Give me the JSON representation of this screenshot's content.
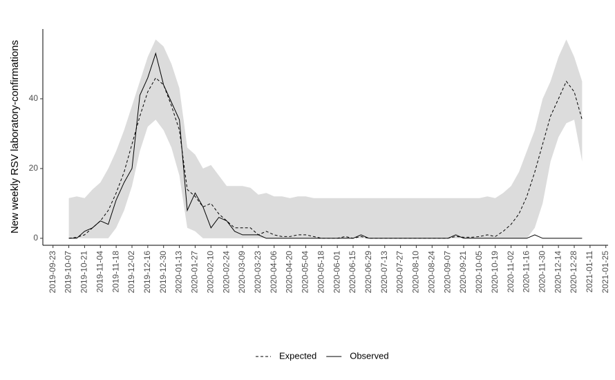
{
  "chart_data": {
    "type": "line",
    "y_label": "New weekly RSV laboratory-confirmations",
    "x": [
      "2019-10-07",
      "2019-10-14",
      "2019-10-21",
      "2019-10-28",
      "2019-11-04",
      "2019-11-11",
      "2019-11-18",
      "2019-11-25",
      "2019-12-02",
      "2019-12-09",
      "2019-12-16",
      "2019-12-23",
      "2019-12-30",
      "2020-01-06",
      "2020-01-13",
      "2020-01-20",
      "2020-01-27",
      "2020-02-03",
      "2020-02-10",
      "2020-02-17",
      "2020-02-24",
      "2020-03-02",
      "2020-03-09",
      "2020-03-16",
      "2020-03-23",
      "2020-03-30",
      "2020-04-06",
      "2020-04-13",
      "2020-04-20",
      "2020-04-27",
      "2020-05-04",
      "2020-05-11",
      "2020-05-18",
      "2020-05-25",
      "2020-06-01",
      "2020-06-08",
      "2020-06-15",
      "2020-06-22",
      "2020-06-29",
      "2020-07-06",
      "2020-07-13",
      "2020-07-20",
      "2020-07-27",
      "2020-08-03",
      "2020-08-10",
      "2020-08-17",
      "2020-08-24",
      "2020-08-31",
      "2020-09-07",
      "2020-09-14",
      "2020-09-21",
      "2020-09-28",
      "2020-10-05",
      "2020-10-12",
      "2020-10-19",
      "2020-10-26",
      "2020-11-02",
      "2020-11-09",
      "2020-11-16",
      "2020-11-23",
      "2020-11-30",
      "2020-12-07",
      "2020-12-14",
      "2020-12-21",
      "2020-12-28",
      "2021-01-04"
    ],
    "band": {
      "color": "#dcdcdc",
      "lower": [
        0,
        0,
        0,
        0,
        0,
        0,
        3,
        8,
        15,
        25,
        32,
        34,
        31,
        26,
        18,
        3,
        2,
        0,
        0,
        0,
        0,
        0,
        0,
        0,
        0,
        0,
        0,
        0,
        0,
        0,
        0,
        0,
        0,
        0,
        0,
        0,
        0,
        0,
        0,
        0,
        0,
        0,
        0,
        0,
        0,
        0,
        0,
        0,
        0,
        0,
        0,
        0,
        0,
        0,
        0,
        0,
        0,
        0,
        0,
        3,
        10,
        22,
        29,
        33,
        34,
        22
      ],
      "upper": [
        11.5,
        12,
        11.5,
        14,
        16,
        20,
        25,
        31,
        38,
        45,
        52,
        57,
        55,
        50,
        43,
        26,
        24,
        20,
        21,
        18,
        15,
        15,
        15,
        14.5,
        12.5,
        13,
        12,
        12,
        11.5,
        12,
        12,
        11.5,
        11.5,
        11.5,
        11.5,
        11.5,
        11.5,
        11.5,
        11.5,
        11.5,
        11.5,
        11.5,
        11.5,
        11.5,
        11.5,
        11.5,
        11.5,
        11.5,
        11.5,
        11.5,
        11.5,
        11.5,
        11.5,
        12,
        11.5,
        13,
        15,
        19,
        25,
        31,
        40,
        45,
        52,
        57,
        52,
        45
      ]
    },
    "series": [
      {
        "name": "Expected",
        "color": "#000000",
        "linetype": "dashed",
        "values": [
          0,
          0.3,
          1,
          3,
          5,
          8,
          13,
          19,
          27,
          35,
          42,
          46,
          44,
          38,
          31,
          14,
          12,
          9,
          10,
          7,
          5,
          3,
          3,
          3,
          1,
          2,
          1,
          0.5,
          0.5,
          1,
          1,
          0.5,
          0,
          0,
          0,
          0.5,
          0,
          0.5,
          0,
          0,
          0,
          0,
          0,
          0,
          0,
          0,
          0,
          0,
          0,
          0.5,
          0.3,
          0.3,
          0.5,
          1,
          0.5,
          2,
          4,
          7,
          12,
          19,
          27,
          35,
          40,
          45,
          42,
          34
        ]
      },
      {
        "name": "Observed",
        "color": "#000000",
        "linetype": "solid",
        "values": [
          0,
          0,
          2,
          3,
          5,
          4,
          11,
          16,
          20,
          41,
          46,
          53,
          44,
          39,
          34,
          8,
          13,
          9,
          3,
          6,
          5,
          2,
          1,
          1,
          1,
          0,
          0,
          0,
          0,
          0,
          0,
          0,
          0,
          0,
          0,
          0,
          0,
          1,
          0,
          0,
          0,
          0,
          0,
          0,
          0,
          0,
          0,
          0,
          0,
          1,
          0,
          0,
          0,
          0,
          0,
          0,
          0,
          0,
          0,
          1,
          0,
          0,
          0,
          0,
          0,
          0
        ]
      }
    ],
    "xlim": [
      "2019-09-14",
      "2021-01-27"
    ],
    "xticks": [
      "2019-09-23",
      "2019-10-07",
      "2019-10-21",
      "2019-11-04",
      "2019-11-18",
      "2019-12-02",
      "2019-12-16",
      "2019-12-30",
      "2020-01-13",
      "2020-01-27",
      "2020-02-10",
      "2020-02-24",
      "2020-03-09",
      "2020-03-23",
      "2020-04-06",
      "2020-04-20",
      "2020-05-04",
      "2020-05-18",
      "2020-06-01",
      "2020-06-15",
      "2020-06-29",
      "2020-07-13",
      "2020-07-27",
      "2020-08-10",
      "2020-08-24",
      "2020-09-07",
      "2020-09-21",
      "2020-10-05",
      "2020-10-19",
      "2020-11-02",
      "2020-11-16",
      "2020-11-30",
      "2020-12-14",
      "2020-12-28",
      "2021-01-11",
      "2021-01-25"
    ],
    "ylim": [
      -2,
      60
    ],
    "yticks": [
      0,
      20,
      40
    ],
    "grid": false,
    "legend": "bottom"
  }
}
